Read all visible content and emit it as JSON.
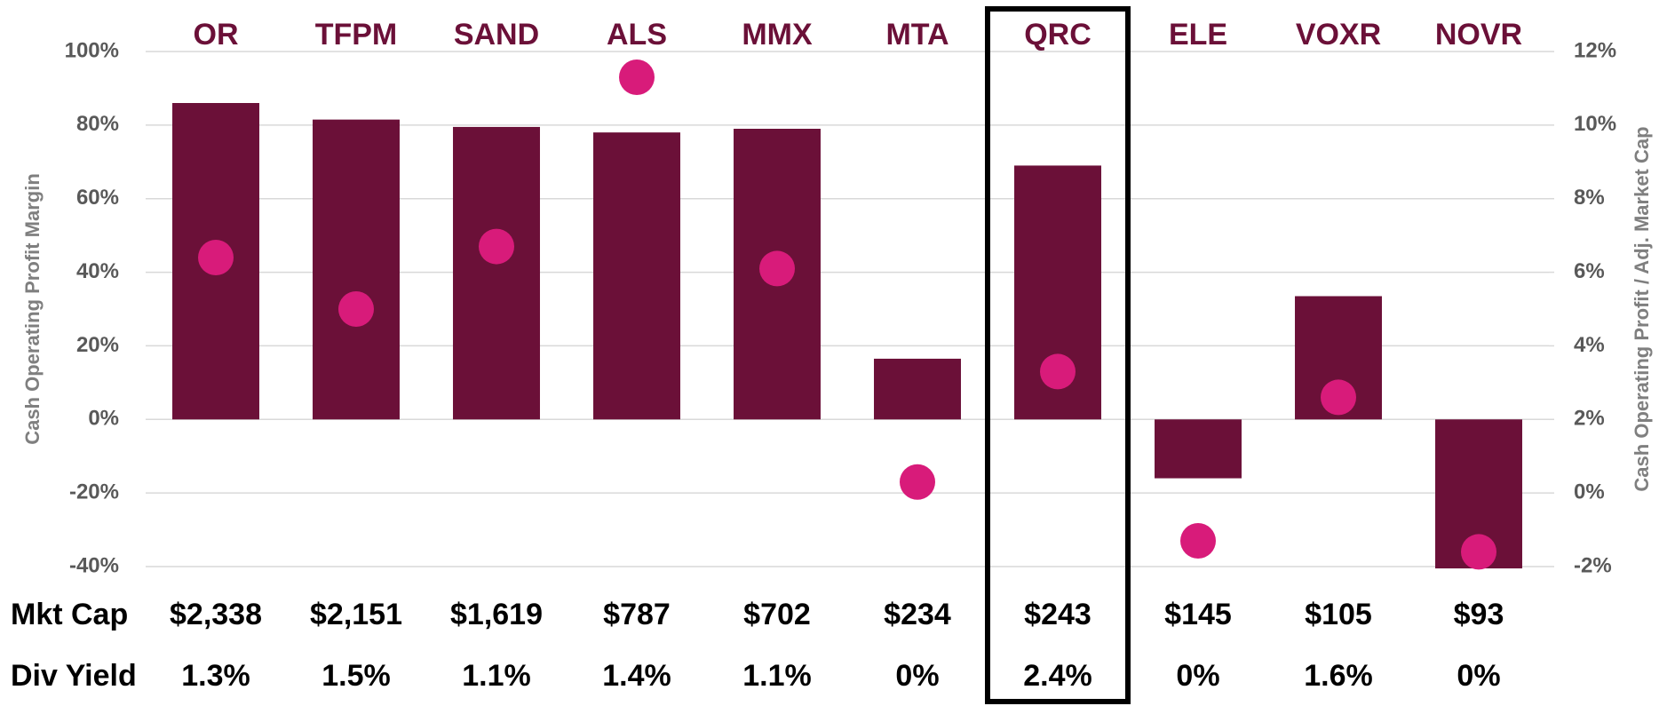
{
  "chart_data": {
    "type": "bar",
    "categories": [
      "OR",
      "TFPM",
      "SAND",
      "ALS",
      "MMX",
      "MTA",
      "QRC",
      "ELE",
      "VOXR",
      "NOVR"
    ],
    "y_label": "Cash Operating Profit Margin",
    "y2_label": "Cash Operating Profit / Adj. Market Cap",
    "series": [
      {
        "type": "bar",
        "color": "#6b1038",
        "values": [
          86,
          81.5,
          79.5,
          78,
          79,
          16.5,
          69,
          -16,
          33.5,
          -40.5
        ]
      },
      {
        "type": "scatter",
        "axis": "y2",
        "color": "#d81b7a",
        "values": [
          6.4,
          5.0,
          6.7,
          11.3,
          6.1,
          0.3,
          3.3,
          -1.3,
          2.6,
          -1.6
        ]
      }
    ],
    "ylim": [
      -40,
      100
    ],
    "yticks": [
      {
        "value": -40,
        "label": "-40%"
      },
      {
        "value": -20,
        "label": "-20%"
      },
      {
        "value": 0,
        "label": "0%"
      },
      {
        "value": 20,
        "label": "20%"
      },
      {
        "value": 40,
        "label": "40%"
      },
      {
        "value": 60,
        "label": "60%"
      },
      {
        "value": 80,
        "label": "80%"
      },
      {
        "value": 100,
        "label": "100%"
      }
    ],
    "y2lim": [
      -2,
      12
    ],
    "y2ticks": [
      {
        "value": -2,
        "label": "-2%"
      },
      {
        "value": 0,
        "label": "0%"
      },
      {
        "value": 2,
        "label": "2%"
      },
      {
        "value": 4,
        "label": "4%"
      },
      {
        "value": 6,
        "label": "6%"
      },
      {
        "value": 8,
        "label": "8%"
      },
      {
        "value": 10,
        "label": "10%"
      },
      {
        "value": 12,
        "label": "12%"
      }
    ],
    "grid": true,
    "highlight": "QRC",
    "table": {
      "rows": [
        [
          "Mkt Cap",
          "$2,338",
          "$2,151",
          "$1,619",
          "$787",
          "$702",
          "$234",
          "$243",
          "$145",
          "$105",
          "$93"
        ],
        [
          "Div Yield",
          "1.3%",
          "1.5%",
          "1.1%",
          "1.4%",
          "1.1%",
          "0%",
          "2.4%",
          "0%",
          "1.6%",
          "0%"
        ]
      ]
    }
  }
}
